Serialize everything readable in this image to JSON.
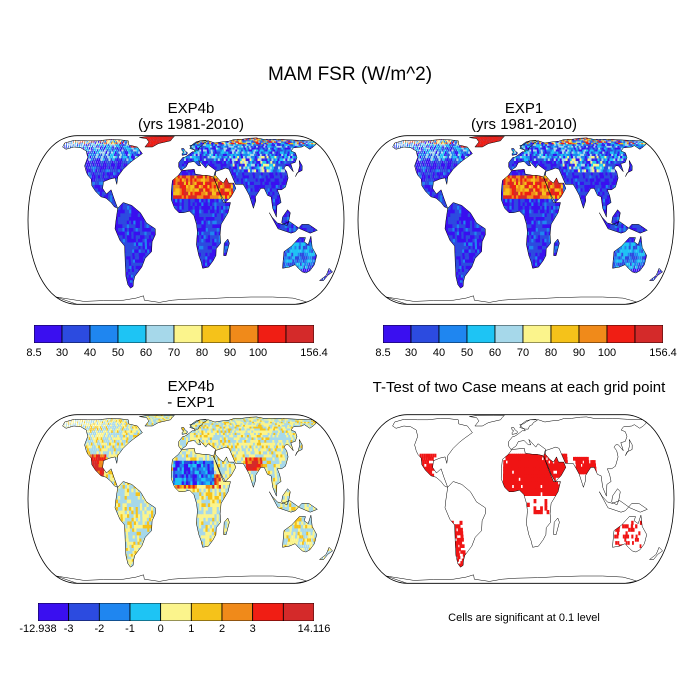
{
  "figure": {
    "title": "MAM FSR (W/m^2)",
    "panels": [
      {
        "title_line1": "EXP4b",
        "title_line2": "(yrs 1981-2010)"
      },
      {
        "title_line1": "EXP1",
        "title_line2": "(yrs 1981-2010)"
      },
      {
        "title_line1": "EXP4b",
        "title_line2": "- EXP1"
      },
      {
        "title_line1": "T-Test of two Case means at each grid point",
        "title_line2": ""
      }
    ],
    "ttest_note": "Cells are significant at 0.1 level"
  },
  "colorbars": {
    "fsr": {
      "colors": [
        "#3a0ff0",
        "#2c4be0",
        "#1f86f0",
        "#1ec4f4",
        "#a6d8ea",
        "#fbf48c",
        "#f5c21a",
        "#f08a1a",
        "#f01e14",
        "#d42a2a"
      ],
      "labels": [
        "8.5",
        "30",
        "40",
        "50",
        "60",
        "70",
        "80",
        "90",
        "100",
        "156.4"
      ]
    },
    "diff": {
      "colors": [
        "#3a0ff0",
        "#2c4be0",
        "#1f86f0",
        "#1ec4f4",
        "#fbf48c",
        "#f5c21a",
        "#f08a1a",
        "#f01e14",
        "#d42a2a"
      ],
      "labels": [
        "-12.938",
        "-3",
        "-2",
        "-1",
        "0",
        "1",
        "2",
        "3",
        "14.116"
      ]
    }
  }
}
